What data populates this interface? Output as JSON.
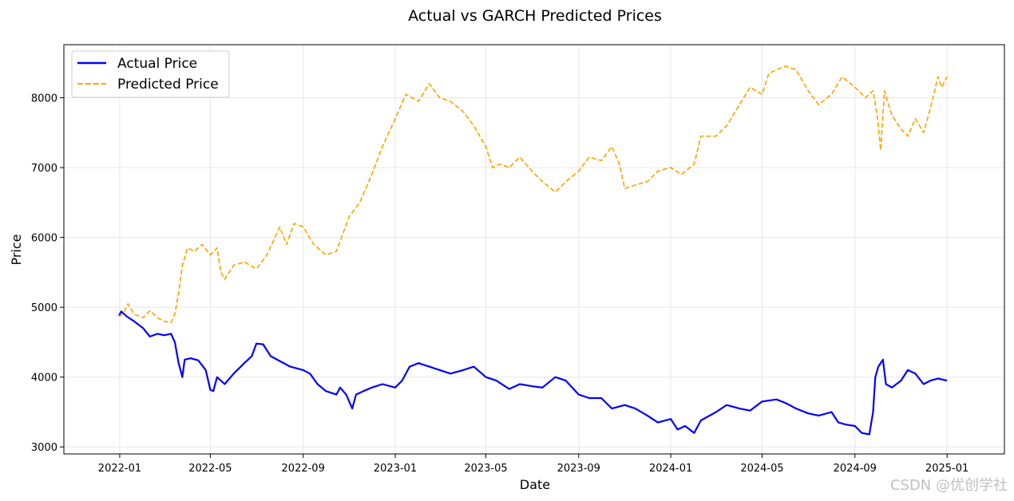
{
  "chart_data": {
    "type": "line",
    "title": "Actual vs GARCH Predicted Prices",
    "xlabel": "Date",
    "ylabel": "Price",
    "grid": true,
    "legend_position": "top-left",
    "colors": {
      "actual": "#0000ff",
      "predicted": "#ffa500"
    },
    "x_ticks": [
      "2022-01",
      "2022-05",
      "2022-09",
      "2023-01",
      "2023-05",
      "2023-09",
      "2024-01",
      "2024-05",
      "2024-09",
      "2025-01"
    ],
    "y_ticks": [
      3000,
      4000,
      5000,
      6000,
      7000,
      8000
    ],
    "xlim": [
      "2021-10-19",
      "2025-03-18"
    ],
    "ylim": [
      2900,
      8760
    ],
    "series": [
      {
        "name": "Actual Price",
        "style": "solid",
        "points": [
          [
            "2021-12-31",
            4880
          ],
          [
            "2022-01-03",
            4940
          ],
          [
            "2022-01-10",
            4870
          ],
          [
            "2022-01-20",
            4800
          ],
          [
            "2022-02-01",
            4700
          ],
          [
            "2022-02-10",
            4580
          ],
          [
            "2022-02-20",
            4620
          ],
          [
            "2022-03-01",
            4600
          ],
          [
            "2022-03-10",
            4620
          ],
          [
            "2022-03-15",
            4500
          ],
          [
            "2022-03-20",
            4200
          ],
          [
            "2022-03-25",
            4000
          ],
          [
            "2022-03-28",
            4250
          ],
          [
            "2022-04-05",
            4270
          ],
          [
            "2022-04-15",
            4240
          ],
          [
            "2022-04-25",
            4100
          ],
          [
            "2022-05-01",
            3820
          ],
          [
            "2022-05-05",
            3800
          ],
          [
            "2022-05-10",
            4000
          ],
          [
            "2022-05-20",
            3900
          ],
          [
            "2022-06-01",
            4050
          ],
          [
            "2022-06-15",
            4200
          ],
          [
            "2022-06-25",
            4300
          ],
          [
            "2022-07-01",
            4480
          ],
          [
            "2022-07-10",
            4470
          ],
          [
            "2022-07-20",
            4300
          ],
          [
            "2022-08-01",
            4230
          ],
          [
            "2022-08-15",
            4150
          ],
          [
            "2022-09-01",
            4100
          ],
          [
            "2022-09-10",
            4050
          ],
          [
            "2022-09-20",
            3900
          ],
          [
            "2022-10-01",
            3800
          ],
          [
            "2022-10-15",
            3750
          ],
          [
            "2022-10-20",
            3850
          ],
          [
            "2022-10-28",
            3750
          ],
          [
            "2022-11-05",
            3550
          ],
          [
            "2022-11-10",
            3750
          ],
          [
            "2022-11-20",
            3800
          ],
          [
            "2022-12-01",
            3850
          ],
          [
            "2022-12-15",
            3900
          ],
          [
            "2023-01-01",
            3850
          ],
          [
            "2023-01-10",
            3950
          ],
          [
            "2023-01-20",
            4150
          ],
          [
            "2023-02-01",
            4200
          ],
          [
            "2023-02-15",
            4150
          ],
          [
            "2023-03-01",
            4100
          ],
          [
            "2023-03-15",
            4050
          ],
          [
            "2023-04-01",
            4100
          ],
          [
            "2023-04-15",
            4150
          ],
          [
            "2023-05-01",
            4000
          ],
          [
            "2023-05-15",
            3950
          ],
          [
            "2023-06-01",
            3830
          ],
          [
            "2023-06-15",
            3900
          ],
          [
            "2023-07-01",
            3870
          ],
          [
            "2023-07-15",
            3850
          ],
          [
            "2023-08-01",
            4000
          ],
          [
            "2023-08-15",
            3950
          ],
          [
            "2023-09-01",
            3750
          ],
          [
            "2023-09-15",
            3700
          ],
          [
            "2023-10-01",
            3700
          ],
          [
            "2023-10-15",
            3550
          ],
          [
            "2023-11-01",
            3600
          ],
          [
            "2023-11-15",
            3550
          ],
          [
            "2023-12-01",
            3450
          ],
          [
            "2023-12-15",
            3350
          ],
          [
            "2024-01-01",
            3400
          ],
          [
            "2024-01-10",
            3250
          ],
          [
            "2024-01-20",
            3300
          ],
          [
            "2024-02-01",
            3200
          ],
          [
            "2024-02-10",
            3380
          ],
          [
            "2024-03-01",
            3500
          ],
          [
            "2024-03-15",
            3600
          ],
          [
            "2024-04-01",
            3550
          ],
          [
            "2024-04-15",
            3520
          ],
          [
            "2024-05-01",
            3650
          ],
          [
            "2024-05-20",
            3680
          ],
          [
            "2024-06-01",
            3630
          ],
          [
            "2024-06-15",
            3550
          ],
          [
            "2024-07-01",
            3480
          ],
          [
            "2024-07-15",
            3450
          ],
          [
            "2024-08-01",
            3500
          ],
          [
            "2024-08-10",
            3350
          ],
          [
            "2024-08-20",
            3320
          ],
          [
            "2024-09-01",
            3300
          ],
          [
            "2024-09-10",
            3200
          ],
          [
            "2024-09-20",
            3180
          ],
          [
            "2024-09-25",
            3500
          ],
          [
            "2024-09-28",
            4000
          ],
          [
            "2024-10-02",
            4150
          ],
          [
            "2024-10-08",
            4250
          ],
          [
            "2024-10-12",
            3900
          ],
          [
            "2024-10-20",
            3850
          ],
          [
            "2024-11-01",
            3950
          ],
          [
            "2024-11-10",
            4100
          ],
          [
            "2024-11-20",
            4050
          ],
          [
            "2024-12-01",
            3900
          ],
          [
            "2024-12-10",
            3950
          ],
          [
            "2024-12-20",
            3980
          ],
          [
            "2025-01-01",
            3950
          ]
        ]
      },
      {
        "name": "Predicted Price",
        "style": "dashed",
        "points": [
          [
            "2021-12-31",
            4870
          ],
          [
            "2022-01-05",
            4900
          ],
          [
            "2022-01-12",
            5050
          ],
          [
            "2022-01-20",
            4900
          ],
          [
            "2022-02-01",
            4850
          ],
          [
            "2022-02-10",
            4950
          ],
          [
            "2022-02-20",
            4850
          ],
          [
            "2022-03-01",
            4800
          ],
          [
            "2022-03-10",
            4780
          ],
          [
            "2022-03-15",
            4900
          ],
          [
            "2022-03-20",
            5200
          ],
          [
            "2022-03-25",
            5600
          ],
          [
            "2022-04-01",
            5850
          ],
          [
            "2022-04-10",
            5800
          ],
          [
            "2022-04-20",
            5900
          ],
          [
            "2022-05-01",
            5750
          ],
          [
            "2022-05-10",
            5850
          ],
          [
            "2022-05-15",
            5500
          ],
          [
            "2022-05-20",
            5400
          ],
          [
            "2022-06-01",
            5600
          ],
          [
            "2022-06-15",
            5650
          ],
          [
            "2022-07-01",
            5550
          ],
          [
            "2022-07-15",
            5750
          ],
          [
            "2022-08-01",
            6150
          ],
          [
            "2022-08-10",
            5900
          ],
          [
            "2022-08-20",
            6200
          ],
          [
            "2022-09-01",
            6150
          ],
          [
            "2022-09-15",
            5900
          ],
          [
            "2022-10-01",
            5750
          ],
          [
            "2022-10-15",
            5800
          ],
          [
            "2022-11-01",
            6300
          ],
          [
            "2022-11-15",
            6500
          ],
          [
            "2022-12-01",
            6900
          ],
          [
            "2022-12-15",
            7300
          ],
          [
            "2023-01-01",
            7700
          ],
          [
            "2023-01-15",
            8050
          ],
          [
            "2023-02-01",
            7950
          ],
          [
            "2023-02-15",
            8200
          ],
          [
            "2023-03-01",
            8000
          ],
          [
            "2023-03-15",
            7950
          ],
          [
            "2023-04-01",
            7800
          ],
          [
            "2023-04-15",
            7600
          ],
          [
            "2023-05-01",
            7300
          ],
          [
            "2023-05-10",
            7000
          ],
          [
            "2023-05-20",
            7050
          ],
          [
            "2023-06-01",
            7000
          ],
          [
            "2023-06-15",
            7150
          ],
          [
            "2023-07-01",
            6950
          ],
          [
            "2023-07-15",
            6800
          ],
          [
            "2023-08-01",
            6650
          ],
          [
            "2023-08-15",
            6800
          ],
          [
            "2023-09-01",
            6950
          ],
          [
            "2023-09-15",
            7150
          ],
          [
            "2023-10-01",
            7100
          ],
          [
            "2023-10-15",
            7300
          ],
          [
            "2023-10-25",
            7050
          ],
          [
            "2023-11-01",
            6700
          ],
          [
            "2023-11-15",
            6750
          ],
          [
            "2023-12-01",
            6800
          ],
          [
            "2023-12-15",
            6950
          ],
          [
            "2024-01-01",
            7000
          ],
          [
            "2024-01-15",
            6900
          ],
          [
            "2024-02-01",
            7050
          ],
          [
            "2024-02-10",
            7450
          ],
          [
            "2024-03-01",
            7450
          ],
          [
            "2024-03-15",
            7600
          ],
          [
            "2024-04-01",
            7900
          ],
          [
            "2024-04-15",
            8150
          ],
          [
            "2024-05-01",
            8050
          ],
          [
            "2024-05-10",
            8350
          ],
          [
            "2024-05-20",
            8400
          ],
          [
            "2024-06-01",
            8450
          ],
          [
            "2024-06-15",
            8400
          ],
          [
            "2024-07-01",
            8100
          ],
          [
            "2024-07-15",
            7900
          ],
          [
            "2024-08-01",
            8050
          ],
          [
            "2024-08-15",
            8300
          ],
          [
            "2024-09-01",
            8150
          ],
          [
            "2024-09-15",
            8000
          ],
          [
            "2024-09-25",
            8100
          ],
          [
            "2024-10-01",
            7700
          ],
          [
            "2024-10-05",
            7250
          ],
          [
            "2024-10-10",
            8100
          ],
          [
            "2024-10-20",
            7750
          ],
          [
            "2024-11-01",
            7550
          ],
          [
            "2024-11-10",
            7450
          ],
          [
            "2024-11-20",
            7700
          ],
          [
            "2024-12-01",
            7500
          ],
          [
            "2024-12-10",
            7850
          ],
          [
            "2024-12-20",
            8300
          ],
          [
            "2024-12-25",
            8150
          ],
          [
            "2025-01-01",
            8300
          ]
        ]
      }
    ]
  },
  "watermark": "CSDN @优创学社"
}
